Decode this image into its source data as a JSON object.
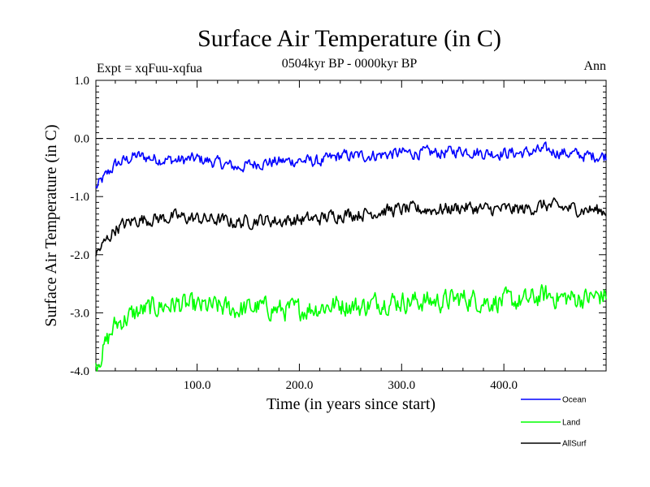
{
  "chart_data": {
    "type": "line",
    "title": "Surface Air Temperature (in C)",
    "subtitle_left": "Expt = xqFuu-xqfua",
    "subtitle_center": "0504kyr BP - 0000kyr BP",
    "subtitle_right": "Ann",
    "xlabel": "Time (in years since start)",
    "ylabel": "Surface Air Temperature (in C)",
    "xlim": [
      1,
      500
    ],
    "ylim": [
      -4.0,
      1.0
    ],
    "xticks": [
      100,
      200,
      300,
      400
    ],
    "xtick_labels": [
      "100.0",
      "200.0",
      "300.0",
      "400.0"
    ],
    "yticks": [
      1.0,
      0.0,
      -1.0,
      -2.0,
      -3.0,
      -4.0
    ],
    "ytick_labels": [
      "1.0",
      "0.0",
      "-1.0",
      "-2.0",
      "-3.0",
      "-4.0"
    ],
    "reference_line": 0.0,
    "series": [
      {
        "name": "Ocean",
        "color": "#0000ff",
        "x": [
          1,
          20,
          40,
          60,
          80,
          100,
          120,
          140,
          160,
          180,
          200,
          220,
          240,
          260,
          280,
          300,
          320,
          340,
          360,
          380,
          400,
          420,
          440,
          460,
          480,
          500
        ],
        "values": [
          -0.85,
          -0.45,
          -0.3,
          -0.35,
          -0.38,
          -0.35,
          -0.42,
          -0.5,
          -0.42,
          -0.4,
          -0.38,
          -0.4,
          -0.3,
          -0.3,
          -0.28,
          -0.25,
          -0.25,
          -0.25,
          -0.2,
          -0.25,
          -0.25,
          -0.25,
          -0.2,
          -0.25,
          -0.3,
          -0.3
        ]
      },
      {
        "name": "Land",
        "color": "#00ff00",
        "x": [
          1,
          20,
          40,
          60,
          80,
          100,
          120,
          140,
          160,
          180,
          200,
          220,
          240,
          260,
          280,
          300,
          320,
          340,
          360,
          380,
          400,
          420,
          440,
          460,
          480,
          500
        ],
        "values": [
          -3.9,
          -3.2,
          -3.0,
          -2.9,
          -2.85,
          -2.9,
          -2.9,
          -2.95,
          -2.9,
          -2.95,
          -2.95,
          -2.9,
          -2.85,
          -2.9,
          -2.8,
          -2.8,
          -2.8,
          -2.8,
          -2.75,
          -2.8,
          -2.8,
          -2.8,
          -2.7,
          -2.75,
          -2.75,
          -2.7
        ]
      },
      {
        "name": "AllSurf",
        "color": "#000000",
        "x": [
          1,
          20,
          40,
          60,
          80,
          100,
          120,
          140,
          160,
          180,
          200,
          220,
          240,
          260,
          280,
          300,
          320,
          340,
          360,
          380,
          400,
          420,
          440,
          460,
          480,
          500
        ],
        "values": [
          -2.0,
          -1.55,
          -1.4,
          -1.38,
          -1.35,
          -1.38,
          -1.4,
          -1.45,
          -1.4,
          -1.42,
          -1.4,
          -1.38,
          -1.3,
          -1.3,
          -1.25,
          -1.22,
          -1.22,
          -1.22,
          -1.18,
          -1.22,
          -1.22,
          -1.22,
          -1.15,
          -1.2,
          -1.22,
          -1.25
        ]
      }
    ],
    "legend": [
      {
        "label": "Ocean",
        "color": "#0000ff"
      },
      {
        "label": "Land",
        "color": "#00ff00"
      },
      {
        "label": "AllSurf",
        "color": "#000000"
      }
    ],
    "legend_placement": "bottom-right"
  }
}
